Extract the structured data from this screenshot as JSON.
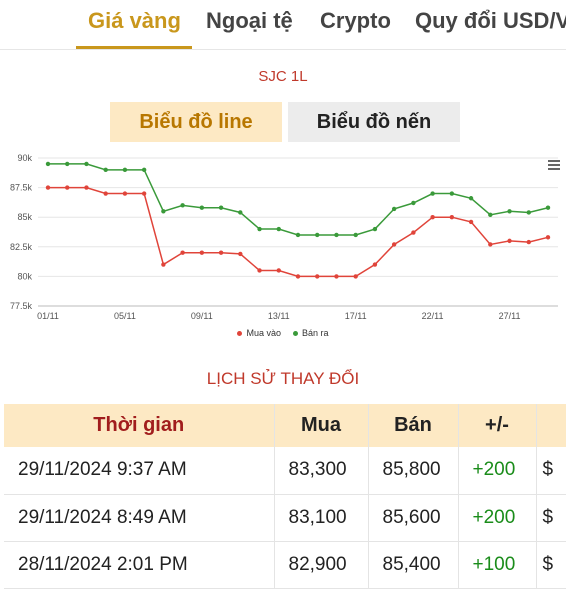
{
  "tabs": [
    {
      "label": "Giá vàng",
      "active": true
    },
    {
      "label": "Ngoại tệ"
    },
    {
      "label": "Crypto"
    },
    {
      "label": "Quy đổi USD/V"
    }
  ],
  "subtitle": "SJC 1L",
  "toggles": {
    "line": "Biểu đồ line",
    "candle": "Biểu đồ nến"
  },
  "chart_data": {
    "type": "line",
    "x_ticks": [
      "01/11",
      "05/11",
      "09/11",
      "13/11",
      "17/11",
      "22/11",
      "27/11"
    ],
    "y_ticks": [
      "77.5k",
      "80k",
      "82.5k",
      "85k",
      "87.5k",
      "90k"
    ],
    "ylim": [
      77.5,
      90
    ],
    "grid": true,
    "legend_position": "bottom",
    "series": [
      {
        "name": "Mua vào",
        "color": "#e0443a",
        "values": [
          87.5,
          87.5,
          87.5,
          87.0,
          87.0,
          87.0,
          81.0,
          82.0,
          82.0,
          82.0,
          81.9,
          80.5,
          80.5,
          80.0,
          80.0,
          80.0,
          80.0,
          81.0,
          82.7,
          83.7,
          85.0,
          85.0,
          84.6,
          82.7,
          83.0,
          82.9,
          83.3
        ]
      },
      {
        "name": "Bán ra",
        "color": "#3a9a3a",
        "values": [
          89.5,
          89.5,
          89.5,
          89.0,
          89.0,
          89.0,
          85.5,
          86.0,
          85.8,
          85.8,
          85.4,
          84.0,
          84.0,
          83.5,
          83.5,
          83.5,
          83.5,
          84.0,
          85.7,
          86.2,
          87.0,
          87.0,
          86.6,
          85.2,
          85.5,
          85.4,
          85.8
        ]
      }
    ]
  },
  "history": {
    "title": "LỊCH SỬ THAY ĐỔI",
    "headers": {
      "time": "Thời gian",
      "buy": "Mua",
      "sell": "Bán",
      "diff": "+/-"
    },
    "rows": [
      {
        "time": "29/11/2024 9:37 AM",
        "buy": "83,300",
        "sell": "85,800",
        "diff": "+200",
        "cur": "$"
      },
      {
        "time": "29/11/2024 8:49 AM",
        "buy": "83,100",
        "sell": "85,600",
        "diff": "+200",
        "cur": "$"
      },
      {
        "time": "28/11/2024 2:01 PM",
        "buy": "82,900",
        "sell": "85,400",
        "diff": "+100",
        "cur": "$"
      }
    ]
  },
  "colors": {
    "accent": "#c9971c",
    "red": "#c0392b",
    "green": "#1a8c1a"
  }
}
